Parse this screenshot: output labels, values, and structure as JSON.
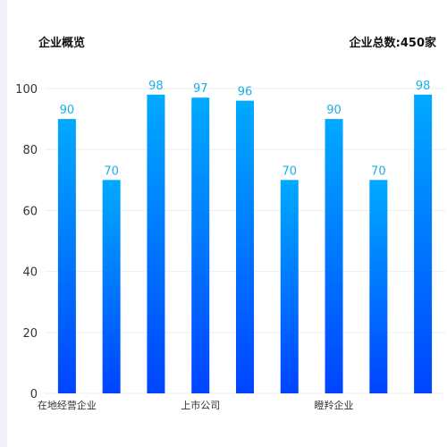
{
  "header": {
    "title": "企业概览",
    "total": "企业总数:450家"
  },
  "colors": {
    "bar_top": "#00aaff",
    "bar_bottom": "#0044ff",
    "label": "#1aaeea",
    "axis_text": "#333333",
    "grid": "#eeeeee"
  },
  "chart_data": {
    "type": "bar",
    "categories": [
      "在地经营企业",
      "",
      "",
      "上市公司",
      "",
      "",
      "瞪羚企业",
      "",
      ""
    ],
    "values": [
      90,
      70,
      98,
      97,
      96,
      70,
      90,
      70,
      98
    ],
    "ylim": [
      0,
      100
    ],
    "yticks": [
      0,
      20,
      40,
      60,
      80,
      100
    ],
    "grid": true,
    "title": "",
    "xlabel": "",
    "ylabel": ""
  }
}
